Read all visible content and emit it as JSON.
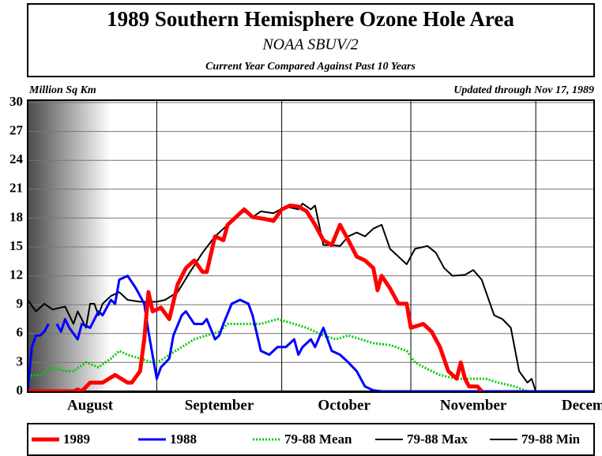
{
  "chart_data": {
    "type": "line",
    "title": "1989 Southern Hemisphere Ozone Hole Area",
    "subtitle": "NOAA SBUV/2",
    "caption": "Current Year Compared Against Past 10 Years",
    "y_label": "Million Sq Km",
    "annotation": "Updated through Nov 17, 1989",
    "xlim": [
      213,
      349
    ],
    "xticks": [
      {
        "value": 228,
        "label": "August"
      },
      {
        "value": 259,
        "label": "September"
      },
      {
        "value": 289,
        "label": "October"
      },
      {
        "value": 320,
        "label": "November"
      },
      {
        "value": 349,
        "label": "December"
      }
    ],
    "xgrid": [
      244,
      274,
      305,
      335
    ],
    "ylim": [
      0,
      30
    ],
    "yticks": [
      0,
      3,
      6,
      9,
      12,
      15,
      18,
      21,
      24,
      27,
      30
    ],
    "grid": true,
    "legend": "bottom",
    "series": [
      {
        "name": "1989",
        "color": "#ff0000",
        "width": 5,
        "style": "solid",
        "x": [
          213,
          224,
          225,
          226,
          228,
          229,
          231,
          234,
          237,
          238,
          240,
          241,
          242,
          243,
          245,
          247,
          249,
          251,
          253,
          255,
          256,
          258,
          260,
          261,
          263,
          265,
          267,
          270,
          272,
          274,
          276,
          278,
          280,
          282,
          284,
          286,
          288,
          290,
          292,
          294,
          296,
          297,
          298,
          300,
          302,
          304,
          305,
          308,
          310,
          312,
          314,
          316,
          317,
          318,
          319,
          321,
          322
        ],
        "values": [
          0,
          0,
          0.2,
          0,
          0.9,
          0.9,
          0.9,
          1.7,
          0.9,
          0.9,
          2.1,
          5.4,
          10.3,
          8.3,
          8.7,
          7.5,
          11.1,
          12.8,
          13.6,
          12.4,
          12.4,
          16.1,
          15.7,
          17.3,
          18.1,
          18.9,
          18.1,
          17.9,
          17.7,
          18.9,
          19.3,
          19.2,
          18.7,
          17.3,
          15.7,
          15.2,
          17.3,
          15.7,
          14.0,
          13.6,
          12.8,
          10.5,
          12.0,
          10.7,
          9.1,
          9.1,
          6.6,
          7.0,
          6.2,
          4.6,
          2.1,
          1.3,
          3.0,
          1.3,
          0.5,
          0.5,
          0
        ]
      },
      {
        "name": "1988",
        "color": "#0000ff",
        "width": 3,
        "style": "solid",
        "x": [
          213,
          214,
          215,
          216,
          217,
          218,
          219,
          220,
          221,
          222,
          223,
          225,
          226,
          228,
          230,
          231,
          233,
          234,
          235,
          237,
          239,
          241,
          242,
          244,
          245,
          247,
          248,
          250,
          251,
          253,
          255,
          256,
          258,
          259,
          260,
          262,
          264,
          266,
          267,
          269,
          271,
          273,
          275,
          277,
          278,
          279,
          281,
          282,
          284,
          286,
          288,
          290,
          292,
          294,
          296,
          298,
          349
        ],
        "values": [
          0,
          4.6,
          5.8,
          5.8,
          6.2,
          7.0,
          null,
          7.0,
          6.2,
          7.5,
          6.6,
          5.4,
          7.0,
          6.6,
          8.3,
          7.9,
          9.5,
          9.1,
          11.6,
          12.0,
          10.7,
          9.1,
          6.2,
          1.3,
          2.5,
          3.4,
          5.8,
          7.9,
          8.3,
          7.0,
          7.0,
          7.5,
          5.4,
          5.8,
          7.0,
          9.1,
          9.5,
          9.1,
          7.9,
          4.2,
          3.8,
          4.6,
          4.6,
          5.4,
          3.8,
          4.6,
          5.4,
          4.6,
          6.6,
          4.2,
          3.8,
          3.0,
          2.1,
          0.5,
          0.1,
          0,
          0
        ]
      },
      {
        "name": "79-88 Mean",
        "color": "#00cc00",
        "width": 3,
        "style": "dotted",
        "x": [
          213,
          216,
          219,
          222,
          224,
          227,
          230,
          233,
          235,
          237,
          240,
          243,
          245,
          247,
          250,
          253,
          256,
          259,
          261,
          265,
          269,
          273,
          277,
          280,
          284,
          287,
          290,
          293,
          296,
          300,
          304,
          306,
          309,
          312,
          316,
          320,
          323,
          326,
          330,
          333,
          349
        ],
        "values": [
          1.6,
          1.7,
          2.5,
          2.1,
          2.1,
          3.0,
          2.5,
          3.4,
          4.2,
          3.8,
          3.4,
          3.0,
          3.2,
          3.8,
          4.6,
          5.4,
          5.8,
          6.2,
          7.0,
          7.0,
          7.0,
          7.5,
          7.0,
          6.6,
          5.8,
          5.4,
          5.8,
          5.4,
          5.0,
          4.8,
          4.2,
          3.0,
          2.3,
          1.7,
          1.3,
          1.3,
          1.3,
          0.9,
          0.5,
          0,
          0
        ]
      },
      {
        "name": "79-88 Max",
        "color": "#000000",
        "width": 2,
        "style": "solid",
        "x": [
          213,
          215,
          217,
          219,
          222,
          223,
          224,
          225,
          226,
          227,
          228,
          229,
          230,
          231,
          233,
          235,
          237,
          240,
          242,
          244,
          246,
          249,
          252,
          255,
          258,
          260,
          263,
          265,
          267,
          269,
          272,
          275,
          278,
          279,
          281,
          282,
          284,
          286,
          288,
          290,
          292,
          294,
          296,
          298,
          300,
          302,
          304,
          306,
          309,
          311,
          313,
          315,
          318,
          320,
          322,
          325,
          327,
          329,
          331,
          333,
          334,
          335,
          349
        ],
        "values": [
          9.5,
          8.3,
          9.1,
          8.5,
          8.8,
          7.9,
          7.0,
          8.3,
          7.5,
          6.6,
          9.1,
          9.1,
          7.9,
          9.1,
          9.9,
          10.3,
          9.5,
          9.3,
          9.3,
          9.3,
          9.5,
          10.3,
          12.4,
          14.4,
          16.1,
          16.9,
          18.1,
          18.7,
          18.1,
          18.7,
          18.5,
          19.2,
          18.9,
          19.5,
          18.9,
          19.3,
          15.2,
          15.2,
          15.1,
          16.1,
          16.5,
          16.1,
          16.9,
          17.3,
          14.8,
          14.0,
          13.2,
          14.8,
          15.1,
          14.4,
          12.8,
          12.0,
          12.1,
          12.6,
          11.6,
          7.9,
          7.5,
          6.6,
          2.1,
          0.9,
          1.3,
          0,
          0
        ]
      },
      {
        "name": "79-88 Min",
        "color": "#000000",
        "width": 2,
        "style": "solid",
        "x": [
          213,
          349
        ],
        "values": [
          0,
          0
        ]
      }
    ]
  }
}
